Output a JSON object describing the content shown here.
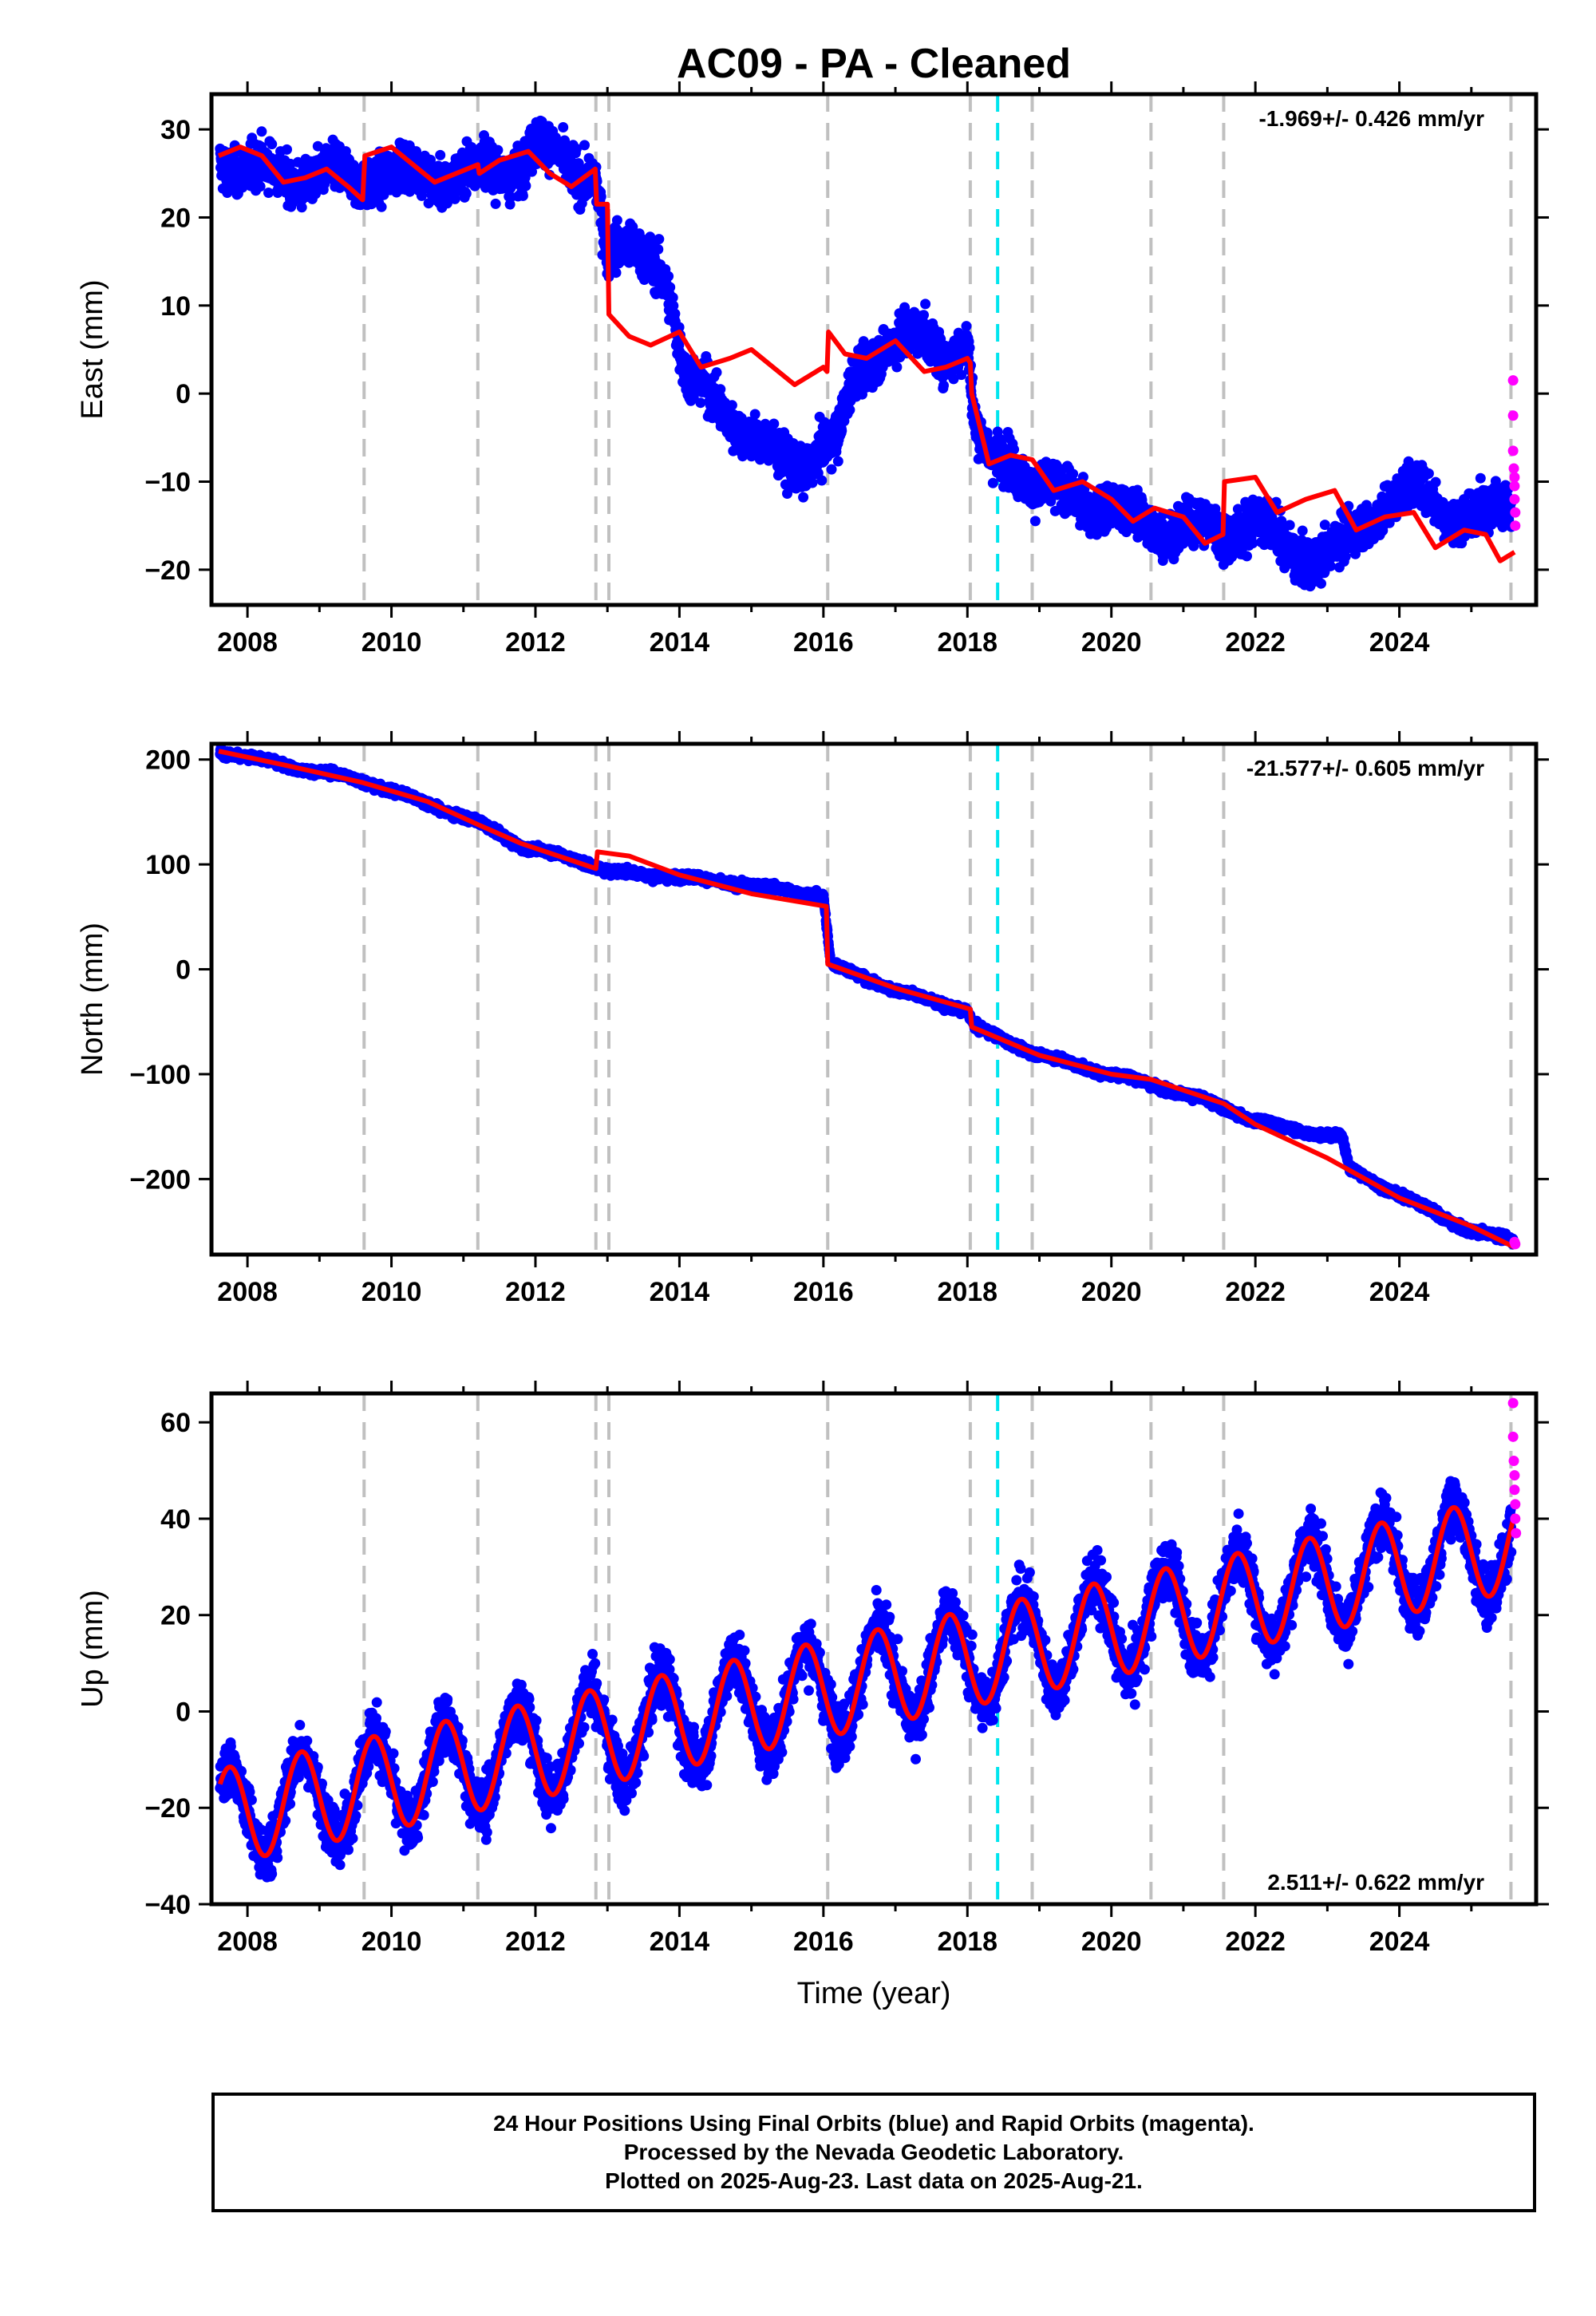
{
  "title": "AC09  - PA - Cleaned",
  "colors": {
    "final": "#0000ff",
    "rapid": "#ff00ff",
    "model": "#ff0000",
    "equipment_change": "#c0c0c0",
    "event": "#00e5ee"
  },
  "chart_data": [
    {
      "type": "scatter",
      "panel": "east",
      "ylabel": "East (mm)",
      "xlabel": "",
      "rate": "-1.969+/- 0.426 mm/yr",
      "rate_position": "top-right",
      "xlim": [
        2007.5,
        2025.9
      ],
      "ylim": [
        -24,
        34
      ],
      "x_ticks": [
        "2008",
        "2010",
        "2012",
        "2014",
        "2016",
        "2018",
        "2020",
        "2022",
        "2024"
      ],
      "y_ticks": [
        "−20",
        "−10",
        "0",
        "10",
        "20",
        "30"
      ],
      "grey_dashed_lines_x": [
        2009.62,
        2011.2,
        2012.84,
        2013.02,
        2016.06,
        2018.04,
        2018.9,
        2020.55,
        2021.56,
        2025.55
      ],
      "cyan_dashed_line_x": 2018.42,
      "observed_trend": [
        [
          2007.6,
          27
        ],
        [
          2008.0,
          25.5
        ],
        [
          2008.5,
          24.5
        ],
        [
          2009.0,
          25
        ],
        [
          2009.5,
          24
        ],
        [
          2009.9,
          25.5
        ],
        [
          2010.3,
          24.5
        ],
        [
          2010.8,
          25
        ],
        [
          2011.2,
          25.5
        ],
        [
          2011.6,
          25
        ],
        [
          2012.0,
          28.5
        ],
        [
          2012.5,
          25
        ],
        [
          2012.83,
          25.5
        ],
        [
          2012.9,
          22
        ],
        [
          2013.0,
          16
        ],
        [
          2013.3,
          15.5
        ],
        [
          2013.6,
          16
        ],
        [
          2013.8,
          14
        ],
        [
          2013.9,
          10
        ],
        [
          2014.1,
          1
        ],
        [
          2014.4,
          0
        ],
        [
          2014.8,
          -3
        ],
        [
          2015.1,
          -6
        ],
        [
          2015.4,
          -8
        ],
        [
          2015.7,
          -8
        ],
        [
          2016.0,
          -6
        ],
        [
          2016.2,
          -6
        ],
        [
          2016.4,
          1
        ],
        [
          2016.7,
          5
        ],
        [
          2017.0,
          6
        ],
        [
          2017.4,
          6
        ],
        [
          2017.7,
          5
        ],
        [
          2018.0,
          6
        ],
        [
          2018.1,
          -4
        ],
        [
          2018.3,
          -8
        ],
        [
          2018.6,
          -7
        ],
        [
          2019.0,
          -11
        ],
        [
          2019.5,
          -12
        ],
        [
          2020.0,
          -13
        ],
        [
          2020.5,
          -15
        ],
        [
          2021.0,
          -15
        ],
        [
          2021.5,
          -16
        ],
        [
          2021.7,
          -15
        ],
        [
          2022.0,
          -14
        ],
        [
          2022.4,
          -18
        ],
        [
          2022.9,
          -18
        ],
        [
          2023.3,
          -17
        ],
        [
          2023.8,
          -12
        ],
        [
          2024.2,
          -11
        ],
        [
          2024.6,
          -13
        ],
        [
          2025.0,
          -14
        ],
        [
          2025.5,
          -13
        ]
      ],
      "rapid_points": [
        [
          2025.58,
          1.5
        ],
        [
          2025.58,
          -2.5
        ],
        [
          2025.58,
          -6.5
        ],
        [
          2025.59,
          -8.5
        ],
        [
          2025.6,
          -9.5
        ],
        [
          2025.6,
          -10.5
        ],
        [
          2025.6,
          -12
        ],
        [
          2025.61,
          -13.5
        ],
        [
          2025.61,
          -15
        ]
      ],
      "model_curve": [
        [
          2007.6,
          27
        ],
        [
          2007.9,
          28
        ],
        [
          2008.2,
          27
        ],
        [
          2008.5,
          24
        ],
        [
          2008.8,
          24.5
        ],
        [
          2009.1,
          25.5
        ],
        [
          2009.4,
          23.5
        ],
        [
          2009.6,
          22
        ],
        [
          2009.63,
          27
        ],
        [
          2010.0,
          28
        ],
        [
          2010.3,
          26
        ],
        [
          2010.6,
          24
        ],
        [
          2010.9,
          25
        ],
        [
          2011.2,
          26
        ],
        [
          2011.22,
          25
        ],
        [
          2011.5,
          26.5
        ],
        [
          2011.9,
          27.5
        ],
        [
          2012.2,
          25
        ],
        [
          2012.5,
          23.5
        ],
        [
          2012.83,
          25.5
        ],
        [
          2012.85,
          21.5
        ],
        [
          2013.0,
          21.5
        ],
        [
          2013.02,
          9
        ],
        [
          2013.3,
          6.5
        ],
        [
          2013.6,
          5.5
        ],
        [
          2014.0,
          7
        ],
        [
          2014.3,
          3
        ],
        [
          2014.7,
          4
        ],
        [
          2015.0,
          5
        ],
        [
          2015.3,
          3
        ],
        [
          2015.6,
          1
        ],
        [
          2016.0,
          3
        ],
        [
          2016.05,
          2.5
        ],
        [
          2016.07,
          7
        ],
        [
          2016.3,
          4.5
        ],
        [
          2016.6,
          4
        ],
        [
          2017.0,
          6
        ],
        [
          2017.4,
          2.5
        ],
        [
          2017.7,
          3
        ],
        [
          2018.0,
          4
        ],
        [
          2018.04,
          3.5
        ],
        [
          2018.06,
          0
        ],
        [
          2018.3,
          -8
        ],
        [
          2018.6,
          -7
        ],
        [
          2018.9,
          -7.5
        ],
        [
          2019.2,
          -11
        ],
        [
          2019.6,
          -10
        ],
        [
          2020.0,
          -12
        ],
        [
          2020.3,
          -14.5
        ],
        [
          2020.6,
          -13
        ],
        [
          2021.0,
          -14
        ],
        [
          2021.3,
          -17
        ],
        [
          2021.55,
          -16
        ],
        [
          2021.57,
          -10
        ],
        [
          2022.0,
          -9.5
        ],
        [
          2022.3,
          -13.5
        ],
        [
          2022.7,
          -12
        ],
        [
          2023.1,
          -11
        ],
        [
          2023.4,
          -15.5
        ],
        [
          2023.8,
          -14
        ],
        [
          2024.2,
          -13.5
        ],
        [
          2024.5,
          -17.5
        ],
        [
          2024.9,
          -15.5
        ],
        [
          2025.2,
          -16
        ],
        [
          2025.4,
          -19
        ],
        [
          2025.6,
          -18
        ]
      ],
      "noise": 2.2,
      "seasonal_amp": 1.2
    },
    {
      "type": "scatter",
      "panel": "north",
      "ylabel": "North (mm)",
      "xlabel": "",
      "rate": "-21.577+/- 0.605 mm/yr",
      "rate_position": "top-right",
      "xlim": [
        2007.5,
        2025.9
      ],
      "ylim": [
        -272,
        215
      ],
      "x_ticks": [
        "2008",
        "2010",
        "2012",
        "2014",
        "2016",
        "2018",
        "2020",
        "2022",
        "2024"
      ],
      "y_ticks": [
        "−200",
        "−100",
        "0",
        "100",
        "200"
      ],
      "grey_dashed_lines_x": [
        2009.62,
        2011.2,
        2012.84,
        2013.02,
        2016.06,
        2018.04,
        2018.9,
        2020.55,
        2021.56,
        2025.55
      ],
      "cyan_dashed_line_x": 2018.42,
      "observed_trend": [
        [
          2007.6,
          208
        ],
        [
          2008.5,
          195
        ],
        [
          2009.6,
          180
        ],
        [
          2010.5,
          158
        ],
        [
          2011.2,
          140
        ],
        [
          2011.8,
          118
        ],
        [
          2012.8,
          100
        ],
        [
          2013.0,
          93
        ],
        [
          2014.0,
          88
        ],
        [
          2015.0,
          80
        ],
        [
          2016.0,
          70
        ],
        [
          2016.1,
          5
        ],
        [
          2017.0,
          -20
        ],
        [
          2018.0,
          -40
        ],
        [
          2018.1,
          -55
        ],
        [
          2019.0,
          -82
        ],
        [
          2020.0,
          -100
        ],
        [
          2020.6,
          -110
        ],
        [
          2021.5,
          -130
        ],
        [
          2022.0,
          -145
        ],
        [
          2022.7,
          -155
        ],
        [
          2023.2,
          -160
        ],
        [
          2023.3,
          -190
        ],
        [
          2024.0,
          -215
        ],
        [
          2025.0,
          -250
        ],
        [
          2025.6,
          -258
        ]
      ],
      "rapid_points": [
        [
          2025.6,
          -260
        ],
        [
          2025.61,
          -262
        ]
      ],
      "model_curve": [
        [
          2007.6,
          208
        ],
        [
          2008.5,
          195
        ],
        [
          2009.6,
          178
        ],
        [
          2010.5,
          160
        ],
        [
          2011.2,
          138
        ],
        [
          2011.8,
          120
        ],
        [
          2012.84,
          96
        ],
        [
          2012.86,
          112
        ],
        [
          2013.3,
          108
        ],
        [
          2014.0,
          90
        ],
        [
          2015.0,
          72
        ],
        [
          2016.04,
          60
        ],
        [
          2016.06,
          5
        ],
        [
          2017.0,
          -18
        ],
        [
          2018.04,
          -38
        ],
        [
          2018.06,
          -55
        ],
        [
          2019.0,
          -82
        ],
        [
          2020.0,
          -100
        ],
        [
          2020.55,
          -105
        ],
        [
          2021.56,
          -128
        ],
        [
          2022.0,
          -148
        ],
        [
          2023.0,
          -180
        ],
        [
          2024.0,
          -218
        ],
        [
          2025.0,
          -245
        ],
        [
          2025.6,
          -265
        ]
      ],
      "noise": 3,
      "seasonal_amp": 1.5
    },
    {
      "type": "scatter",
      "panel": "up",
      "ylabel": "Up (mm)",
      "xlabel": "Time (year)",
      "rate": "2.511+/- 0.622 mm/yr",
      "rate_position": "bottom-right",
      "xlim": [
        2007.5,
        2025.9
      ],
      "ylim": [
        -40,
        66
      ],
      "x_ticks": [
        "2008",
        "2010",
        "2012",
        "2014",
        "2016",
        "2018",
        "2020",
        "2022",
        "2024"
      ],
      "y_ticks": [
        "−40",
        "−20",
        "0",
        "20",
        "40",
        "60"
      ],
      "grey_dashed_lines_x": [
        2009.62,
        2011.2,
        2012.84,
        2013.02,
        2016.06,
        2018.04,
        2018.9,
        2020.55,
        2021.56,
        2025.55
      ],
      "cyan_dashed_line_x": 2018.42,
      "seasonal": {
        "trend_start": [
          2007.6,
          -22
        ],
        "trend_end": [
          2025.6,
          35
        ],
        "amplitude": 10,
        "phase_peak": 0.75
      },
      "rapid_points": [
        [
          2025.58,
          64
        ],
        [
          2025.58,
          57
        ],
        [
          2025.59,
          52
        ],
        [
          2025.6,
          49
        ],
        [
          2025.6,
          46
        ],
        [
          2025.61,
          43
        ],
        [
          2025.61,
          40
        ],
        [
          2025.62,
          37
        ]
      ],
      "noise": 5
    }
  ],
  "footer": {
    "line1": "24 Hour Positions Using Final Orbits (blue) and Rapid Orbits (magenta).",
    "line2": "Processed by the Nevada Geodetic Laboratory.",
    "line3": "Plotted on 2025-Aug-23. Last data on 2025-Aug-21."
  }
}
